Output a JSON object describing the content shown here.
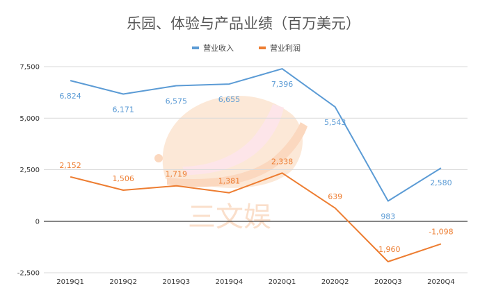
{
  "chart_data": {
    "type": "line",
    "title": "乐园、体验与产品业绩（百万美元）",
    "categories": [
      "2019Q1",
      "2019Q2",
      "2019Q3",
      "2019Q4",
      "2020Q1",
      "2020Q2",
      "2020Q3",
      "2020Q4"
    ],
    "series": [
      {
        "name": "营业收入",
        "color": "#5b9bd5",
        "values": [
          6824,
          6171,
          6575,
          6655,
          7396,
          5543,
          983,
          2580
        ],
        "labels": [
          "6,824",
          "6,171",
          "6,575",
          "6,655",
          "7,396",
          "5,543",
          "983",
          "2,580"
        ]
      },
      {
        "name": "营业利润",
        "color": "#ed7d31",
        "values": [
          2152,
          1506,
          1719,
          1381,
          2338,
          639,
          -1960,
          -1098
        ],
        "labels": [
          "2,152",
          "1,506",
          "1,719",
          "1,381",
          "2,338",
          "639",
          "-1,960",
          "-1,098"
        ]
      }
    ],
    "ylim": [
      -2500,
      7500
    ],
    "yticks": [
      -2500,
      0,
      2500,
      5000,
      7500
    ],
    "ytick_labels": [
      "-2,500",
      "0",
      "2,500",
      "5,000",
      "7,500"
    ],
    "grid": true,
    "legend": "top-center",
    "xlabel": "",
    "ylabel": ""
  },
  "watermark": {
    "text": "三文娱",
    "colors": {
      "peach": "#fbd7b8",
      "pink": "#fcd0d8",
      "orange": "#f9b98c"
    }
  }
}
